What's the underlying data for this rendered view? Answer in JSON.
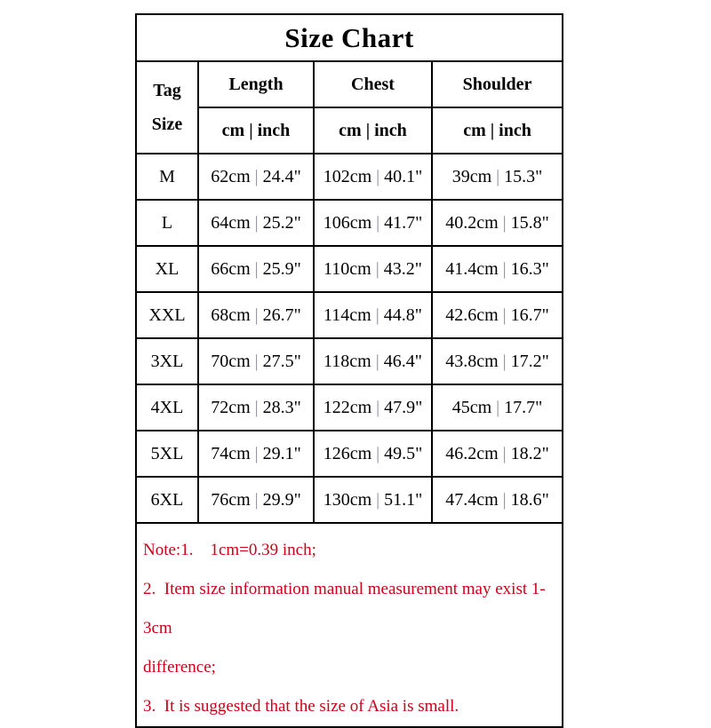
{
  "title": "Size Chart",
  "table": {
    "tag_header_line1": "Tag",
    "tag_header_line2": "Size",
    "columns": [
      {
        "label": "Length"
      },
      {
        "label": "Chest"
      },
      {
        "label": "Shoulder"
      }
    ],
    "unit_label_cm": "cm",
    "unit_separator": "|",
    "unit_label_inch": "inch",
    "rows": [
      {
        "size": "M",
        "length": {
          "cm": "62cm",
          "inch": "24.4\""
        },
        "chest": {
          "cm": "102cm",
          "inch": "40.1\""
        },
        "shoulder": {
          "cm": "39cm",
          "inch": "15.3\""
        }
      },
      {
        "size": "L",
        "length": {
          "cm": "64cm",
          "inch": "25.2\""
        },
        "chest": {
          "cm": "106cm",
          "inch": "41.7\""
        },
        "shoulder": {
          "cm": "40.2cm",
          "inch": "15.8\""
        }
      },
      {
        "size": "XL",
        "length": {
          "cm": "66cm",
          "inch": "25.9\""
        },
        "chest": {
          "cm": "110cm",
          "inch": "43.2\""
        },
        "shoulder": {
          "cm": "41.4cm",
          "inch": "16.3\""
        }
      },
      {
        "size": "XXL",
        "length": {
          "cm": "68cm",
          "inch": "26.7\""
        },
        "chest": {
          "cm": "114cm",
          "inch": "44.8\""
        },
        "shoulder": {
          "cm": "42.6cm",
          "inch": "16.7\""
        }
      },
      {
        "size": "3XL",
        "length": {
          "cm": "70cm",
          "inch": "27.5\""
        },
        "chest": {
          "cm": "118cm",
          "inch": "46.4\""
        },
        "shoulder": {
          "cm": "43.8cm",
          "inch": "17.2\""
        }
      },
      {
        "size": "4XL",
        "length": {
          "cm": "72cm",
          "inch": "28.3\""
        },
        "chest": {
          "cm": "122cm",
          "inch": "47.9\""
        },
        "shoulder": {
          "cm": "45cm",
          "inch": "17.7\""
        }
      },
      {
        "size": "5XL",
        "length": {
          "cm": "74cm",
          "inch": "29.1\""
        },
        "chest": {
          "cm": "126cm",
          "inch": "49.5\""
        },
        "shoulder": {
          "cm": "46.2cm",
          "inch": "18.2\""
        }
      },
      {
        "size": "6XL",
        "length": {
          "cm": "76cm",
          "inch": "29.9\""
        },
        "chest": {
          "cm": "130cm",
          "inch": "51.1\""
        },
        "shoulder": {
          "cm": "47.4cm",
          "inch": "18.6\""
        }
      }
    ]
  },
  "notes": {
    "lines": [
      "Note:1.    1cm=0.39 inch;",
      "2.  Item size information manual measurement may exist 1-3cm",
      "difference;",
      "3.  It is suggested that the size of Asia is small."
    ]
  },
  "colors": {
    "note_red": "#cc0018",
    "text_black": "#000000",
    "pipe_gray": "#8a8a98",
    "border_black": "#000000",
    "background": "#ffffff"
  },
  "chart_data": {
    "type": "table",
    "title": "Size Chart",
    "columns": [
      "Tag Size",
      "Length (cm)",
      "Length (inch)",
      "Chest (cm)",
      "Chest (inch)",
      "Shoulder (cm)",
      "Shoulder (inch)"
    ],
    "rows": [
      [
        "M",
        62,
        24.4,
        102,
        40.1,
        39,
        15.3
      ],
      [
        "L",
        64,
        25.2,
        106,
        41.7,
        40.2,
        15.8
      ],
      [
        "XL",
        66,
        25.9,
        110,
        43.2,
        41.4,
        16.3
      ],
      [
        "XXL",
        68,
        26.7,
        114,
        44.8,
        42.6,
        16.7
      ],
      [
        "3XL",
        70,
        27.5,
        118,
        46.4,
        43.8,
        17.2
      ],
      [
        "4XL",
        72,
        28.3,
        122,
        47.9,
        45,
        17.7
      ],
      [
        "5XL",
        74,
        29.1,
        126,
        49.5,
        46.2,
        18.2
      ],
      [
        "6XL",
        76,
        29.9,
        130,
        51.1,
        47.4,
        18.6
      ]
    ],
    "notes": [
      "Note:1. 1cm=0.39 inch;",
      "2. Item size information manual measurement may exist 1-3cm difference;",
      "3. It is suggested that the size of Asia is small."
    ],
    "units": "cm | inch"
  }
}
